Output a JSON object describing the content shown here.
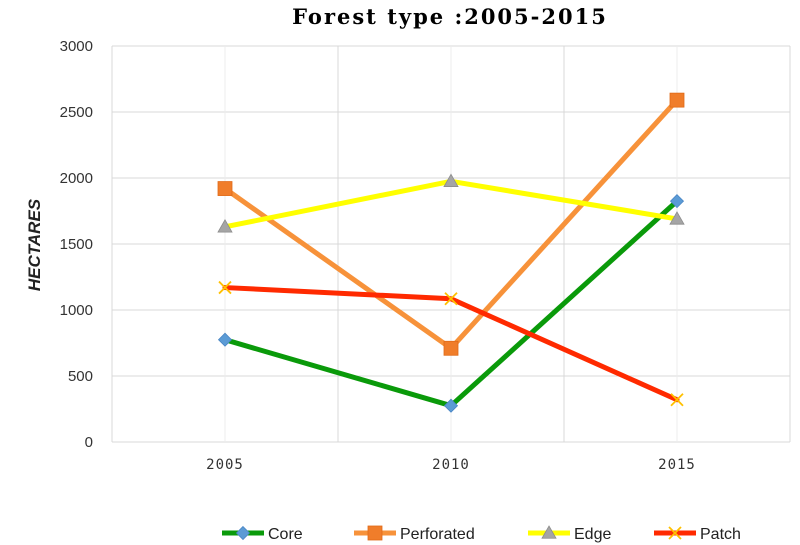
{
  "chart_data": {
    "type": "line",
    "title": "Forest type :2005-2015",
    "xlabel": "",
    "ylabel": "HECTARES",
    "categories": [
      "2005",
      "2010",
      "2015"
    ],
    "ylim": [
      0,
      3000
    ],
    "yticks": [
      0,
      500,
      1000,
      1500,
      2000,
      2500,
      3000
    ],
    "grid": true,
    "legend_position": "bottom",
    "series": [
      {
        "name": "Core",
        "values": [
          775,
          275,
          1825
        ],
        "color": "#0a9a0a",
        "marker": "diamond",
        "marker_color": "#5b9bd5"
      },
      {
        "name": "Perforated",
        "values": [
          1920,
          710,
          2590
        ],
        "color": "#f7923a",
        "marker": "square",
        "marker_color": "#f07d2a"
      },
      {
        "name": "Edge",
        "values": [
          1630,
          1975,
          1690
        ],
        "color": "#ffff00",
        "marker": "triangle",
        "marker_color": "#a5a5a5"
      },
      {
        "name": "Patch",
        "values": [
          1170,
          1085,
          320
        ],
        "color": "#ff2a00",
        "marker": "x",
        "marker_color": "#ffc000"
      }
    ]
  }
}
